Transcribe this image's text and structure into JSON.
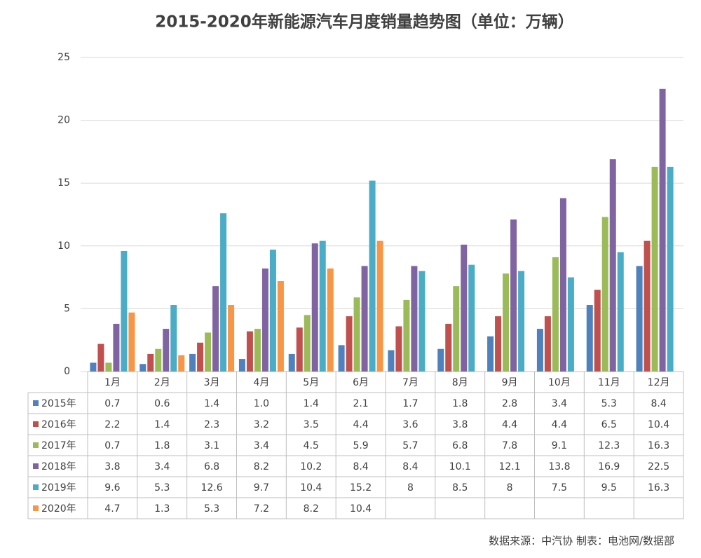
{
  "chart_data": {
    "type": "bar",
    "title": "2015-2020年新能源汽车月度销量趋势图（单位：万辆）",
    "categories": [
      "1月",
      "2月",
      "3月",
      "4月",
      "5月",
      "6月",
      "7月",
      "8月",
      "9月",
      "10月",
      "11月",
      "12月"
    ],
    "series": [
      {
        "name": "2015年",
        "color": "#4f81bd",
        "values": [
          0.7,
          0.6,
          1.4,
          1.0,
          1.4,
          2.1,
          1.7,
          1.8,
          2.8,
          3.4,
          5.3,
          8.4
        ],
        "value_labels": [
          "0.7",
          "0.6",
          "1.4",
          "1.0",
          "1.4",
          "2.1",
          "1.7",
          "1.8",
          "2.8",
          "3.4",
          "5.3",
          "8.4"
        ]
      },
      {
        "name": "2016年",
        "color": "#c0504d",
        "values": [
          2.2,
          1.4,
          2.3,
          3.2,
          3.5,
          4.4,
          3.6,
          3.8,
          4.4,
          4.4,
          6.5,
          10.4
        ]
      },
      {
        "name": "2017年",
        "color": "#9bbb59",
        "values": [
          0.7,
          1.8,
          3.1,
          3.4,
          4.5,
          5.9,
          5.7,
          6.8,
          7.8,
          9.1,
          12.3,
          16.3
        ]
      },
      {
        "name": "2018年",
        "color": "#8064a2",
        "values": [
          3.8,
          3.4,
          6.8,
          8.2,
          10.2,
          8.4,
          8.4,
          10.1,
          12.1,
          13.8,
          16.9,
          22.5
        ]
      },
      {
        "name": "2019年",
        "color": "#4bacc6",
        "values": [
          9.6,
          5.3,
          12.6,
          9.7,
          10.4,
          15.2,
          8,
          8.5,
          8,
          7.5,
          9.5,
          16.3
        ]
      },
      {
        "name": "2020年",
        "color": "#f79646",
        "values": [
          4.7,
          1.3,
          5.3,
          7.2,
          8.2,
          10.4,
          null,
          null,
          null,
          null,
          null,
          null
        ]
      }
    ],
    "ylim": [
      0,
      25
    ],
    "yticks": [
      0,
      5,
      10,
      15,
      20,
      25
    ],
    "grid": true,
    "source": "数据来源：中汽协  制表：电池网/数据部"
  }
}
